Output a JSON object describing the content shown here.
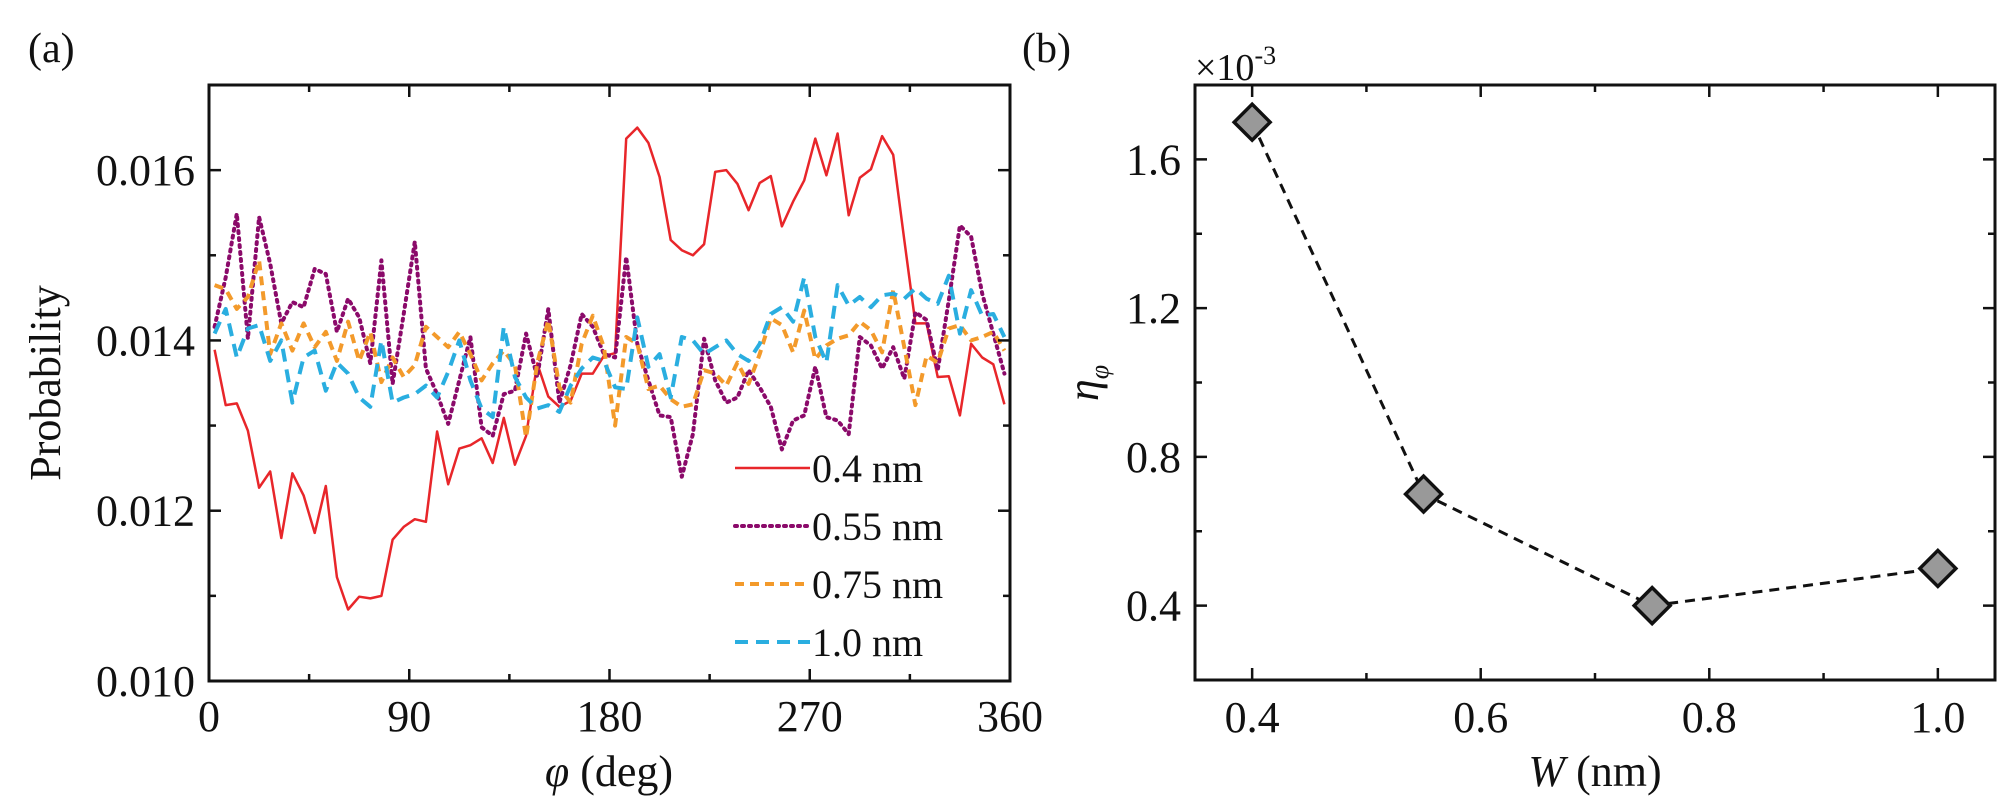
{
  "chart_data": [
    {
      "id": "a",
      "panel_label": "(a)",
      "type": "line",
      "xlabel_symbol": "φ",
      "xlabel_unit": " (deg)",
      "ylabel": "Probability",
      "xlim": [
        0,
        360
      ],
      "ylim": [
        0.01,
        0.017
      ],
      "xticks": [
        0,
        90,
        180,
        270,
        360
      ],
      "xtick_labels": [
        "0",
        "90",
        "180",
        "270",
        "360"
      ],
      "xminor": [
        45,
        135,
        225,
        315
      ],
      "yticks": [
        0.01,
        0.012,
        0.014,
        0.016
      ],
      "ytick_labels": [
        "0.010",
        "0.012",
        "0.014",
        "0.016"
      ],
      "yminor": [
        0.011,
        0.013,
        0.015
      ],
      "grid": false,
      "legend_position": "bottom-right",
      "x_start": 2.5,
      "x_step": 5,
      "series": [
        {
          "name": "0.4 nm",
          "color": "#e8262a",
          "style": "solid",
          "values": [
            0.01389,
            0.01324,
            0.01326,
            0.01294,
            0.01227,
            0.01246,
            0.01168,
            0.01244,
            0.01218,
            0.01174,
            0.01229,
            0.01122,
            0.01084,
            0.01099,
            0.01097,
            0.011,
            0.01166,
            0.01181,
            0.0119,
            0.01187,
            0.01293,
            0.01231,
            0.01273,
            0.01277,
            0.01285,
            0.01256,
            0.01309,
            0.01254,
            0.01288,
            0.01373,
            0.01334,
            0.01322,
            0.01329,
            0.01361,
            0.01361,
            0.01382,
            0.01385,
            0.01637,
            0.0165,
            0.01632,
            0.01592,
            0.01518,
            0.01506,
            0.015,
            0.01513,
            0.01598,
            0.016,
            0.01584,
            0.01553,
            0.01585,
            0.01593,
            0.01534,
            0.01563,
            0.01588,
            0.01637,
            0.01594,
            0.01643,
            0.01547,
            0.01591,
            0.01601,
            0.0164,
            0.01618,
            0.01518,
            0.0142,
            0.0142,
            0.01357,
            0.01358,
            0.01312,
            0.01396,
            0.0138,
            0.01372,
            0.01325
          ]
        },
        {
          "name": "0.55 nm",
          "color": "#8b0a6a",
          "style": "dotted",
          "values": [
            0.01416,
            0.01474,
            0.01549,
            0.01402,
            0.01545,
            0.0149,
            0.0142,
            0.01445,
            0.01439,
            0.01484,
            0.01478,
            0.0141,
            0.01449,
            0.01427,
            0.01373,
            0.01494,
            0.01349,
            0.01431,
            0.01516,
            0.01367,
            0.01337,
            0.01302,
            0.01353,
            0.01404,
            0.01298,
            0.01288,
            0.01337,
            0.01341,
            0.01408,
            0.01357,
            0.01437,
            0.01327,
            0.01371,
            0.01431,
            0.01416,
            0.01384,
            0.0138,
            0.01498,
            0.01396,
            0.01353,
            0.01312,
            0.0131,
            0.0124,
            0.0129,
            0.01402,
            0.01353,
            0.01327,
            0.01333,
            0.01365,
            0.01345,
            0.01322,
            0.01272,
            0.01306,
            0.01312,
            0.01369,
            0.0131,
            0.01306,
            0.0129,
            0.01404,
            0.01394,
            0.01367,
            0.01392,
            0.01355,
            0.01433,
            0.01424,
            0.01365,
            0.01447,
            0.01535,
            0.01522,
            0.01455,
            0.01408,
            0.01361
          ]
        },
        {
          "name": "0.75 nm",
          "color": "#f39a2b",
          "style": "dashed",
          "values": [
            0.01465,
            0.0146,
            0.01437,
            0.01451,
            0.01494,
            0.01384,
            0.0142,
            0.01388,
            0.0142,
            0.01392,
            0.0141,
            0.01376,
            0.01422,
            0.01376,
            0.0141,
            0.01351,
            0.0138,
            0.01357,
            0.01371,
            0.01416,
            0.01404,
            0.01392,
            0.0141,
            0.01384,
            0.01353,
            0.01373,
            0.01388,
            0.01371,
            0.01286,
            0.01373,
            0.01424,
            0.01345,
            0.01327,
            0.01396,
            0.01429,
            0.01392,
            0.013,
            0.01404,
            0.01396,
            0.01343,
            0.01347,
            0.01331,
            0.01322,
            0.01325,
            0.01365,
            0.01361,
            0.01347,
            0.01374,
            0.01349,
            0.01384,
            0.01426,
            0.01418,
            0.01386,
            0.01435,
            0.01378,
            0.01394,
            0.01402,
            0.01406,
            0.01422,
            0.01412,
            0.01386,
            0.01459,
            0.01392,
            0.01324,
            0.01382,
            0.01374,
            0.01414,
            0.01418,
            0.014,
            0.01404,
            0.0141,
            0.01388
          ]
        },
        {
          "name": "1.0 nm",
          "color": "#2aaee0",
          "style": "dashed-long",
          "values": [
            0.01408,
            0.01437,
            0.0138,
            0.01414,
            0.01418,
            0.01376,
            0.014,
            0.01327,
            0.0138,
            0.01388,
            0.01341,
            0.01374,
            0.01361,
            0.01333,
            0.01322,
            0.014,
            0.01327,
            0.01333,
            0.01337,
            0.01347,
            0.01333,
            0.01363,
            0.014,
            0.01353,
            0.0132,
            0.0131,
            0.01416,
            0.01357,
            0.01333,
            0.0132,
            0.01324,
            0.01316,
            0.01347,
            0.01367,
            0.0138,
            0.01376,
            0.01345,
            0.01343,
            0.01427,
            0.01369,
            0.01384,
            0.01333,
            0.01404,
            0.014,
            0.01384,
            0.01392,
            0.014,
            0.01384,
            0.01376,
            0.01396,
            0.01431,
            0.01439,
            0.01422,
            0.01474,
            0.01404,
            0.01374,
            0.01465,
            0.01441,
            0.01451,
            0.01439,
            0.01453,
            0.01455,
            0.01449,
            0.01461,
            0.01449,
            0.01443,
            0.01476,
            0.01408,
            0.01459,
            0.01429,
            0.01431,
            0.01404
          ]
        }
      ]
    },
    {
      "id": "b",
      "panel_label": "(b)",
      "type": "line",
      "marker": "diamond",
      "marker_color": "#999999",
      "line_style": "dashed",
      "line_color": "#111111",
      "xlabel_symbol": "W",
      "xlabel_unit": " (nm)",
      "ylabel_symbol": "η",
      "ylabel_subscript": "φ",
      "y_multiplier": "×10",
      "y_multiplier_exp": "-3",
      "xlim": [
        0.35,
        1.05
      ],
      "ylim": [
        0.2,
        1.8
      ],
      "xticks": [
        0.4,
        0.6,
        0.8,
        1.0
      ],
      "xtick_labels": [
        "0.4",
        "0.6",
        "0.8",
        "1.0"
      ],
      "xminor": [
        0.5,
        0.7,
        0.9
      ],
      "yticks": [
        0.4,
        0.8,
        1.2,
        1.6
      ],
      "ytick_labels": [
        "0.4",
        "0.8",
        "1.2",
        "1.6"
      ],
      "yminor": [
        0.6,
        1.0,
        1.4
      ],
      "grid": false,
      "x": [
        0.4,
        0.55,
        0.75,
        1.0
      ],
      "values": [
        1.7,
        0.7,
        0.4,
        0.5
      ]
    }
  ]
}
